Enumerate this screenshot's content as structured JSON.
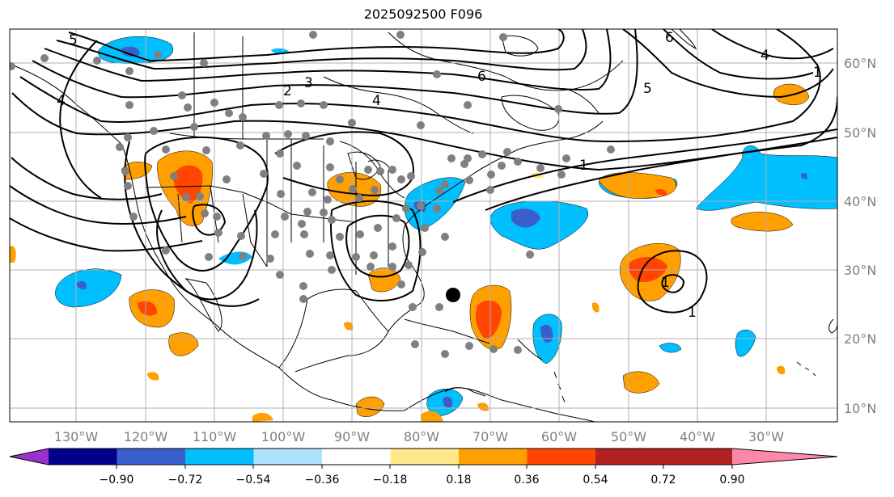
{
  "title": "2025092500 F096",
  "longitude_labels": [
    "130°W",
    "120°W",
    "110°W",
    "100°W",
    "90°W",
    "80°W",
    "70°W",
    "60°W",
    "50°W",
    "40°W",
    "30°W"
  ],
  "latitude_labels": [
    "60°N",
    "50°N",
    "40°N",
    "30°N",
    "20°N",
    "10°N"
  ],
  "colorbar": {
    "tick_labels": [
      "−0.90",
      "−0.72",
      "−0.54",
      "−0.36",
      "−0.18",
      "0.18",
      "0.36",
      "0.54",
      "0.72",
      "0.90"
    ],
    "colors": [
      "#9932CC",
      "#00008B",
      "#3A5FCD",
      "#00BFFF",
      "#B0E2FF",
      "#FFFFFF",
      "#FFE98A",
      "#FFA000",
      "#FF4500",
      "#B22222",
      "#FF88AA"
    ]
  },
  "contour_labels": [
    "5",
    "4",
    "3",
    "2",
    "1",
    "6",
    "6",
    "5",
    "4",
    "1",
    "4",
    "1",
    "1"
  ],
  "fill_colors": {
    "orange": "#FFA000",
    "red": "#FF4500",
    "cyan": "#00BFFF",
    "blue": "#3A5FCD",
    "light": "#FFE98A"
  }
}
